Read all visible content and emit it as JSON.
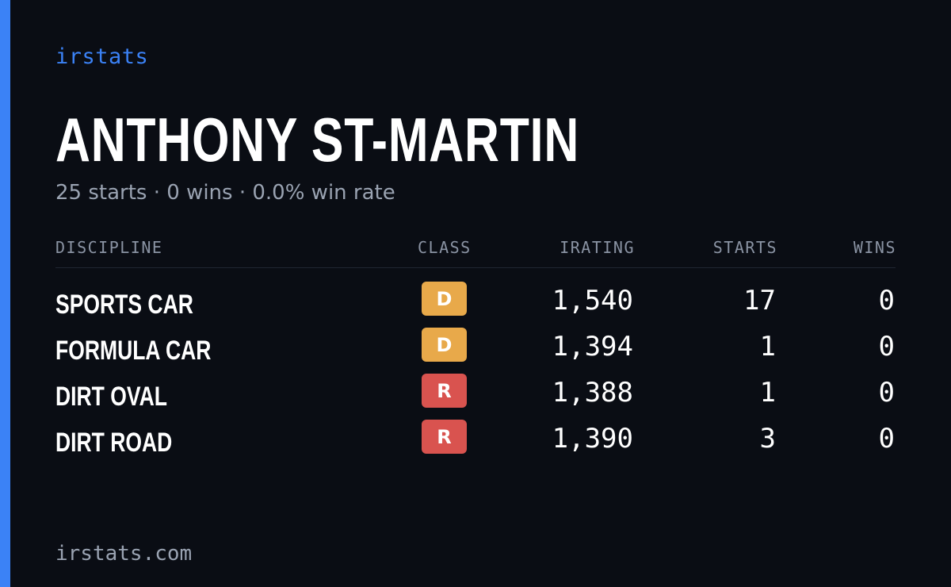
{
  "brand": "irstats",
  "driver": {
    "name": "ANTHONY ST-MARTIN",
    "summary": "25 starts · 0 wins · 0.0% win rate"
  },
  "table": {
    "headers": {
      "discipline": "DISCIPLINE",
      "class": "CLASS",
      "irating": "IRATING",
      "starts": "STARTS",
      "wins": "WINS"
    },
    "rows": [
      {
        "discipline": "SPORTS CAR",
        "class": "D",
        "class_color": "#e8a94a",
        "irating": "1,540",
        "starts": "17",
        "wins": "0"
      },
      {
        "discipline": "FORMULA CAR",
        "class": "D",
        "class_color": "#e8a94a",
        "irating": "1,394",
        "starts": "1",
        "wins": "0"
      },
      {
        "discipline": "DIRT OVAL",
        "class": "R",
        "class_color": "#d9534f",
        "irating": "1,388",
        "starts": "1",
        "wins": "0"
      },
      {
        "discipline": "DIRT ROAD",
        "class": "R",
        "class_color": "#d9534f",
        "irating": "1,390",
        "starts": "3",
        "wins": "0"
      }
    ]
  },
  "footer": "irstats.com",
  "colors": {
    "background": "#0a0d14",
    "accent": "#3b82f6",
    "muted": "#9aa3b2"
  }
}
